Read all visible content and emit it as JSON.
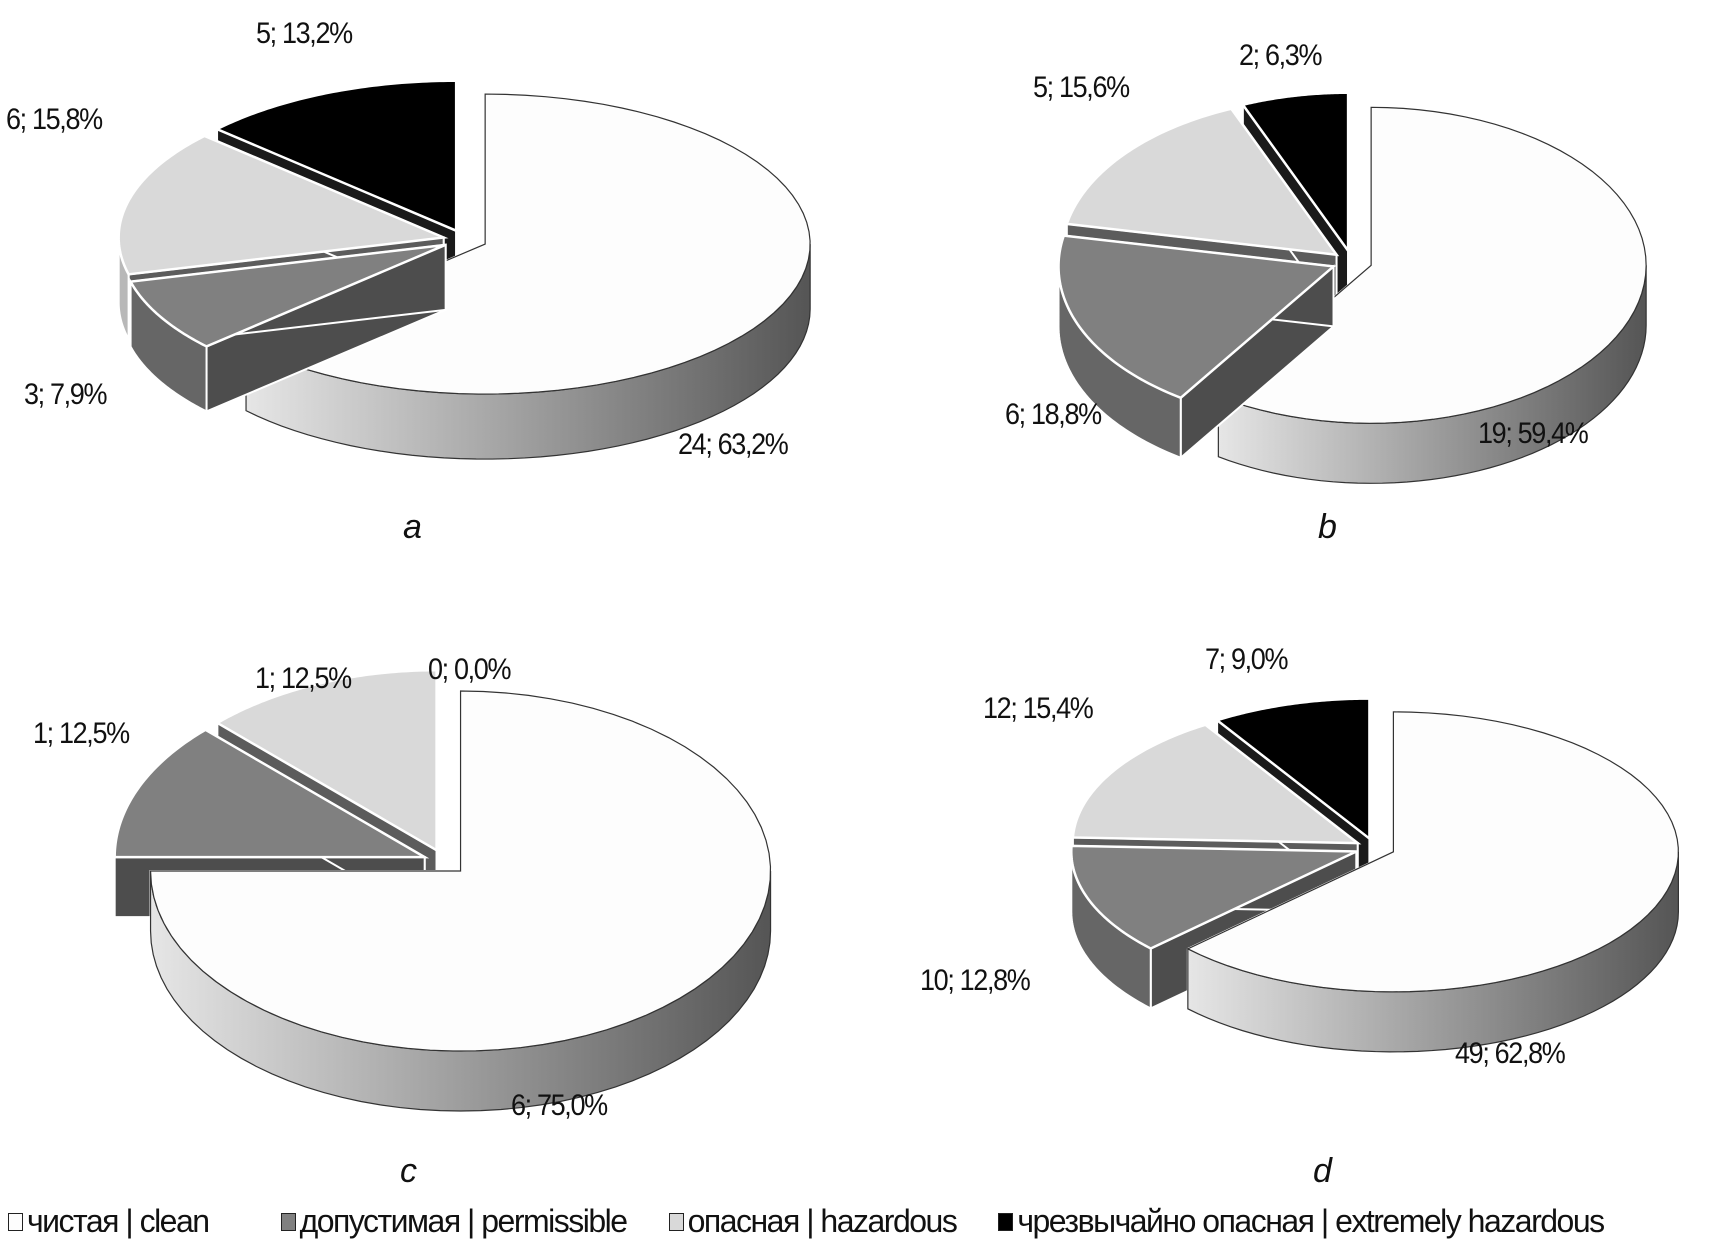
{
  "chart_data": {
    "type": "pie",
    "categories": [
      "clean",
      "permissible",
      "hazardous",
      "extremely hazardous"
    ],
    "colors": [
      "#fdfdfd",
      "#808080",
      "#d9d9d9",
      "#000000"
    ],
    "charts": [
      {
        "panel": "a",
        "values": [
          24,
          3,
          6,
          5
        ],
        "percents": [
          63.2,
          7.9,
          15.8,
          13.2
        ],
        "labels": [
          "24; 63,2%",
          "3; 7,9%",
          "6; 15,8%",
          "5; 13,2%"
        ]
      },
      {
        "panel": "b",
        "values": [
          19,
          6,
          5,
          2
        ],
        "percents": [
          59.4,
          18.8,
          15.6,
          6.3
        ],
        "labels": [
          "19; 59,4%",
          "6; 18,8%",
          "5; 15,6%",
          "2; 6,3%"
        ]
      },
      {
        "panel": "c",
        "values": [
          6,
          1,
          1,
          0
        ],
        "percents": [
          75.0,
          12.5,
          12.5,
          0.0
        ],
        "labels": [
          "6; 75,0%",
          "1; 12,5%",
          "1; 12,5%",
          "0; 0,0%"
        ]
      },
      {
        "panel": "d",
        "values": [
          49,
          10,
          12,
          7
        ],
        "percents": [
          62.8,
          12.8,
          15.4,
          9.0
        ],
        "labels": [
          "49; 62,8%",
          "10; 12,8%",
          "12; 15,4%",
          "7; 9,0%"
        ]
      }
    ],
    "legend": [
      "чистая | clean",
      "допустимая | permissible",
      "опасная | hazardous",
      "чрезвычайно опасная | extremely hazardous"
    ],
    "legend_placement": "bottom"
  }
}
